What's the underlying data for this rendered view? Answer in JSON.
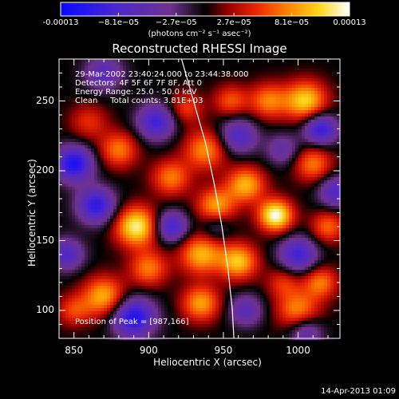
{
  "colorbar": {
    "tick_labels": [
      "-0.00013",
      "−8.1e−05",
      "−2.7e−05",
      "2.7e−05",
      "8.1e−05",
      "0.00013"
    ],
    "units": "(photons cm⁻² s⁻¹ asec⁻²)",
    "range": [
      -0.00013,
      0.00013
    ]
  },
  "chart_data": {
    "type": "heatmap",
    "title": "Reconstructed RHESSI Image",
    "xlabel": "Heliocentric X (arcsec)",
    "ylabel": "Heliocentric Y (arcsec)",
    "xlim": [
      840,
      1028
    ],
    "ylim": [
      80,
      280
    ],
    "x_ticks": [
      850,
      900,
      950,
      1000
    ],
    "y_ticks": [
      100,
      150,
      200,
      250
    ],
    "annotations": [
      "29-Mar-2002 23:40:24.000 to 23:44:38.000",
      "Detectors: 4F 5F 6F 7F 8F, Att 0",
      "Energy Range: 25.0 - 50.0 keV",
      "Clean     Total counts: 3.81E+03"
    ],
    "peak_label": "Position of Peak = [987,166]",
    "peak": [
      987,
      166
    ],
    "limb_curve": [
      [
        922,
        280
      ],
      [
        930,
        250
      ],
      [
        938,
        220
      ],
      [
        944,
        190
      ],
      [
        949,
        160
      ],
      [
        953,
        130
      ],
      [
        956,
        100
      ],
      [
        957,
        80
      ]
    ],
    "sources": [
      {
        "x": 985,
        "y": 168,
        "amp": 1.0,
        "sigma": 8
      },
      {
        "x": 892,
        "y": 160,
        "amp": 0.92,
        "sigma": 10
      },
      {
        "x": 1005,
        "y": 250,
        "amp": 0.8,
        "sigma": 10
      },
      {
        "x": 980,
        "y": 250,
        "amp": 0.55,
        "sigma": 9
      },
      {
        "x": 955,
        "y": 250,
        "amp": 0.45,
        "sigma": 8
      },
      {
        "x": 965,
        "y": 190,
        "amp": 0.7,
        "sigma": 9
      },
      {
        "x": 945,
        "y": 175,
        "amp": 0.65,
        "sigma": 9
      },
      {
        "x": 938,
        "y": 215,
        "amp": 0.6,
        "sigma": 10
      },
      {
        "x": 915,
        "y": 195,
        "amp": 0.55,
        "sigma": 9
      },
      {
        "x": 880,
        "y": 215,
        "amp": 0.55,
        "sigma": 9
      },
      {
        "x": 860,
        "y": 235,
        "amp": 0.35,
        "sigma": 9
      },
      {
        "x": 1010,
        "y": 205,
        "amp": 0.55,
        "sigma": 9
      },
      {
        "x": 1020,
        "y": 160,
        "amp": 0.5,
        "sigma": 8
      },
      {
        "x": 960,
        "y": 135,
        "amp": 0.75,
        "sigma": 9
      },
      {
        "x": 935,
        "y": 140,
        "amp": 0.7,
        "sigma": 10
      },
      {
        "x": 900,
        "y": 130,
        "amp": 0.55,
        "sigma": 9
      },
      {
        "x": 870,
        "y": 110,
        "amp": 0.7,
        "sigma": 10
      },
      {
        "x": 850,
        "y": 100,
        "amp": 0.4,
        "sigma": 8
      },
      {
        "x": 935,
        "y": 105,
        "amp": 0.65,
        "sigma": 9
      },
      {
        "x": 1000,
        "y": 100,
        "amp": 0.6,
        "sigma": 10
      },
      {
        "x": 1015,
        "y": 120,
        "amp": 0.55,
        "sigma": 8
      },
      {
        "x": 990,
        "y": 120,
        "amp": 0.35,
        "sigma": 8
      },
      {
        "x": 925,
        "y": 245,
        "amp": 0.4,
        "sigma": 8
      },
      {
        "x": 865,
        "y": 175,
        "amp": -0.8,
        "sigma": 9
      },
      {
        "x": 850,
        "y": 205,
        "amp": -0.9,
        "sigma": 9
      },
      {
        "x": 905,
        "y": 235,
        "amp": -0.7,
        "sigma": 9
      },
      {
        "x": 960,
        "y": 225,
        "amp": -0.6,
        "sigma": 9
      },
      {
        "x": 1015,
        "y": 230,
        "amp": -0.8,
        "sigma": 8
      },
      {
        "x": 1000,
        "y": 140,
        "amp": -0.7,
        "sigma": 9
      },
      {
        "x": 915,
        "y": 160,
        "amp": -0.7,
        "sigma": 8
      },
      {
        "x": 890,
        "y": 95,
        "amp": -0.9,
        "sigma": 10
      },
      {
        "x": 965,
        "y": 100,
        "amp": -0.5,
        "sigma": 8
      },
      {
        "x": 845,
        "y": 140,
        "amp": -0.6,
        "sigma": 8
      },
      {
        "x": 1005,
        "y": 85,
        "amp": -0.5,
        "sigma": 8
      },
      {
        "x": 945,
        "y": 160,
        "amp": -0.3,
        "sigma": 7
      },
      {
        "x": 1025,
        "y": 185,
        "amp": -0.6,
        "sigma": 8
      },
      {
        "x": 870,
        "y": 270,
        "amp": -0.5,
        "sigma": 9
      },
      {
        "x": 990,
        "y": 215,
        "amp": -0.4,
        "sigma": 8
      }
    ],
    "grid": false
  },
  "footer": {
    "date": "14-Apr-2013 01:09"
  }
}
